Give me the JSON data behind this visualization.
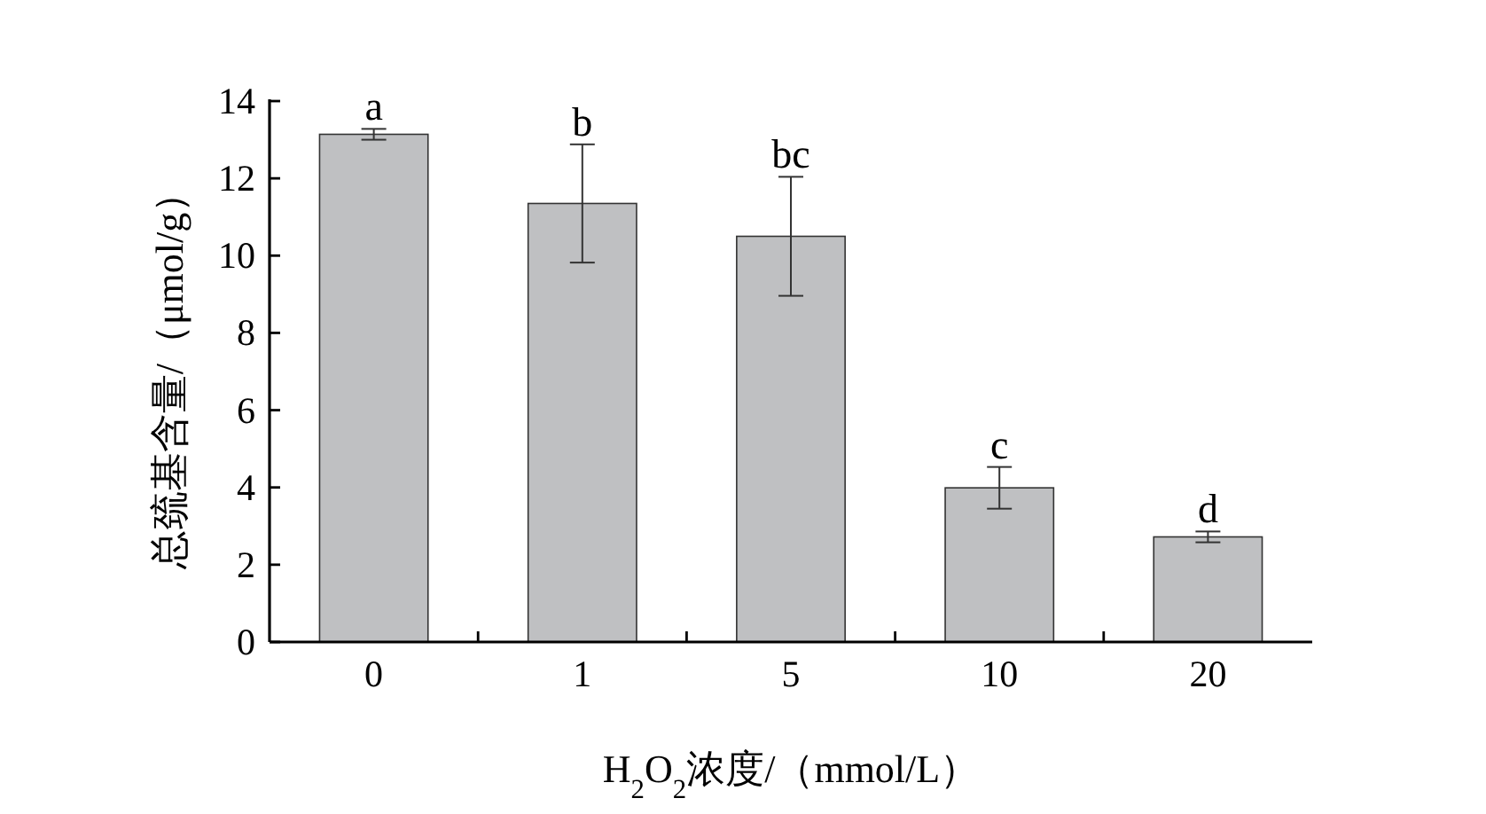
{
  "chart_data": {
    "type": "bar",
    "xlabel": "H$_{2}$O$_{2}$浓度/（mmol/L）",
    "ylabel": "总巯基含量/（μmol/g）",
    "categories": [
      "0",
      "1",
      "5",
      "10",
      "20"
    ],
    "values": [
      13.14,
      11.35,
      10.5,
      3.99,
      2.72
    ],
    "errors": [
      0.14,
      1.53,
      1.54,
      0.54,
      0.14
    ],
    "color": "#bfc0c2",
    "ylim": [
      0,
      14
    ],
    "yticks": [
      0,
      2,
      4,
      6,
      8,
      10,
      12,
      14
    ],
    "grid": false,
    "annotations": [
      {
        "text": "a",
        "x": "0",
        "y": 13.28
      },
      {
        "text": "b",
        "x": "1",
        "y": 12.88
      },
      {
        "text": "bc",
        "x": "5",
        "y": 12.04
      },
      {
        "text": "c",
        "x": "10",
        "y": 4.53
      },
      {
        "text": "d",
        "x": "20",
        "y": 2.86
      }
    ]
  }
}
